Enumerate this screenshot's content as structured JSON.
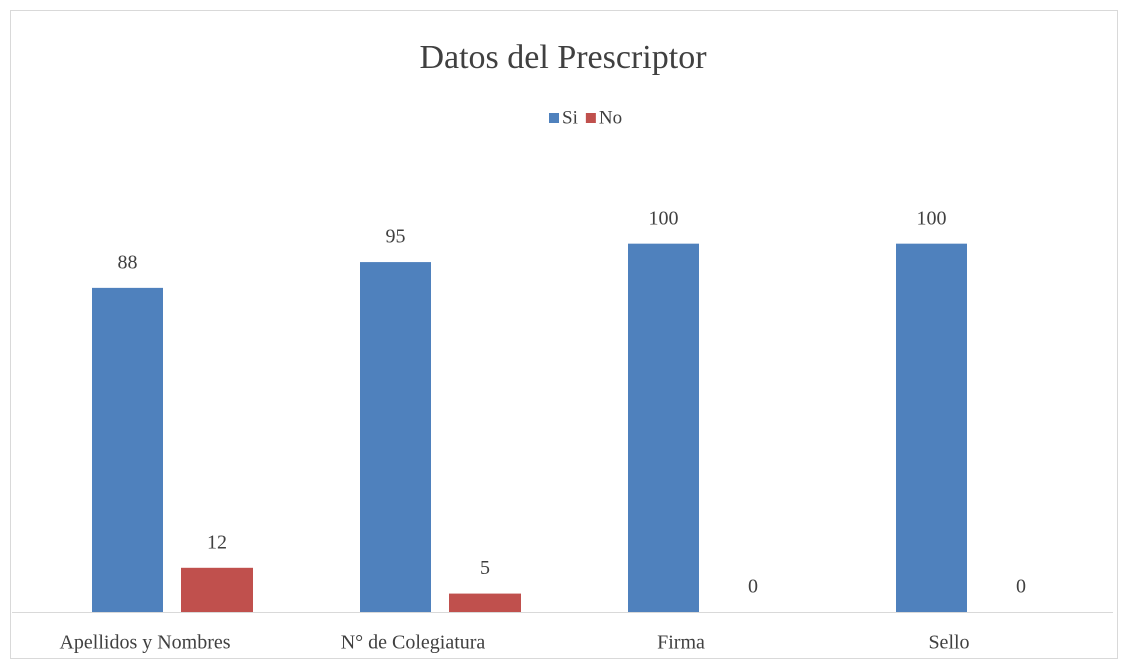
{
  "chart_data": {
    "type": "bar",
    "title": "Datos del Prescriptor",
    "categories": [
      "Apellidos y Nombres",
      "N° de Colegiatura",
      "Firma",
      "Sello"
    ],
    "series": [
      {
        "name": "Si",
        "color": "#4f81bd",
        "values": [
          88,
          95,
          100,
          100
        ]
      },
      {
        "name": "No",
        "color": "#c0504d",
        "values": [
          12,
          5,
          0,
          0
        ]
      }
    ],
    "ylim": [
      0,
      120
    ],
    "legend": "top",
    "grid": false
  }
}
